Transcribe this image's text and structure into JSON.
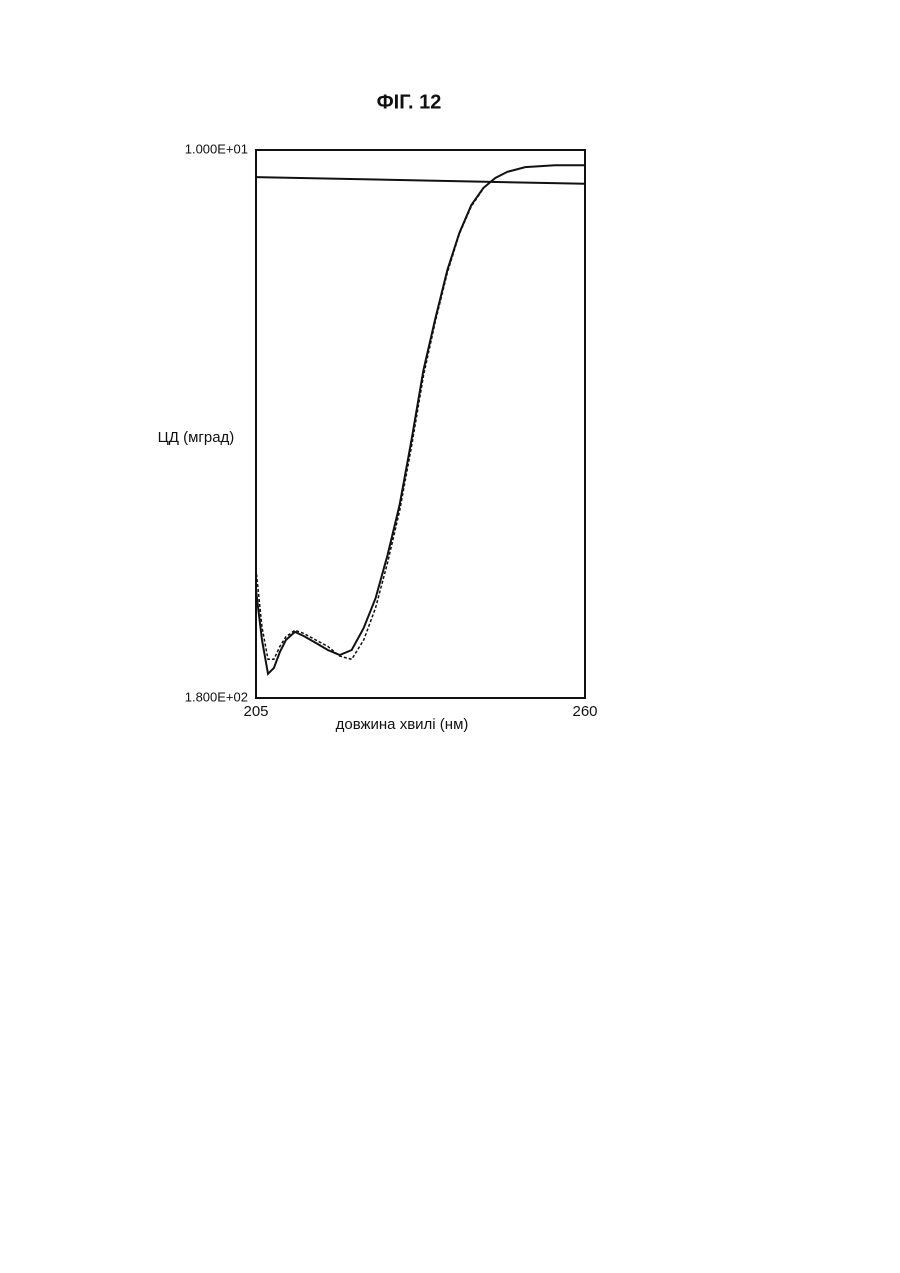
{
  "chart_data": {
    "type": "line",
    "title": "ФІГ. 12",
    "x_label": "довжина хвилі (нм)",
    "y_label": "ЦД (мград)",
    "xlim": [
      205,
      260
    ],
    "xticks": [
      205,
      260
    ],
    "ylim": [
      180,
      10
    ],
    "yticks": [
      {
        "value": 10,
        "label": "1.000E+01"
      },
      {
        "value": 180,
        "label": "1.800E+02"
      }
    ],
    "series": [
      {
        "color": "#111111",
        "dashed": false,
        "x": [
          205,
          206,
          207,
          208,
          209,
          210,
          211.5,
          213,
          215,
          217,
          219,
          221,
          223,
          225,
          227,
          229,
          231,
          233,
          235,
          237,
          239,
          241,
          243,
          245,
          247,
          250,
          255,
          260
        ],
        "values": [
          146.5,
          162,
          172.5,
          170.7,
          165.7,
          162,
          159.5,
          160.8,
          162.9,
          165.1,
          166.7,
          165.1,
          158.3,
          149,
          135.6,
          120.1,
          100,
          78.2,
          62.1,
          47.2,
          35.7,
          27.1,
          21.8,
          18.7,
          16.8,
          15.3,
          14.7,
          14.7
        ]
      },
      {
        "color": "#111111",
        "dashed": true,
        "x": [
          205,
          206,
          207,
          208,
          209,
          210,
          211.5,
          213,
          215,
          217,
          219,
          221,
          223,
          225,
          227,
          229,
          231,
          233,
          235,
          237,
          239,
          241,
          243
        ],
        "values": [
          140,
          158,
          168,
          168,
          164,
          161,
          159,
          160,
          162,
          164,
          167,
          168,
          162,
          152,
          138,
          122,
          102,
          80,
          63,
          48,
          36,
          27.5,
          22
        ]
      },
      {
        "color": "#111111",
        "dashed": false,
        "x": [
          205,
          260
        ],
        "values": [
          18.4,
          20.5
        ]
      }
    ]
  }
}
